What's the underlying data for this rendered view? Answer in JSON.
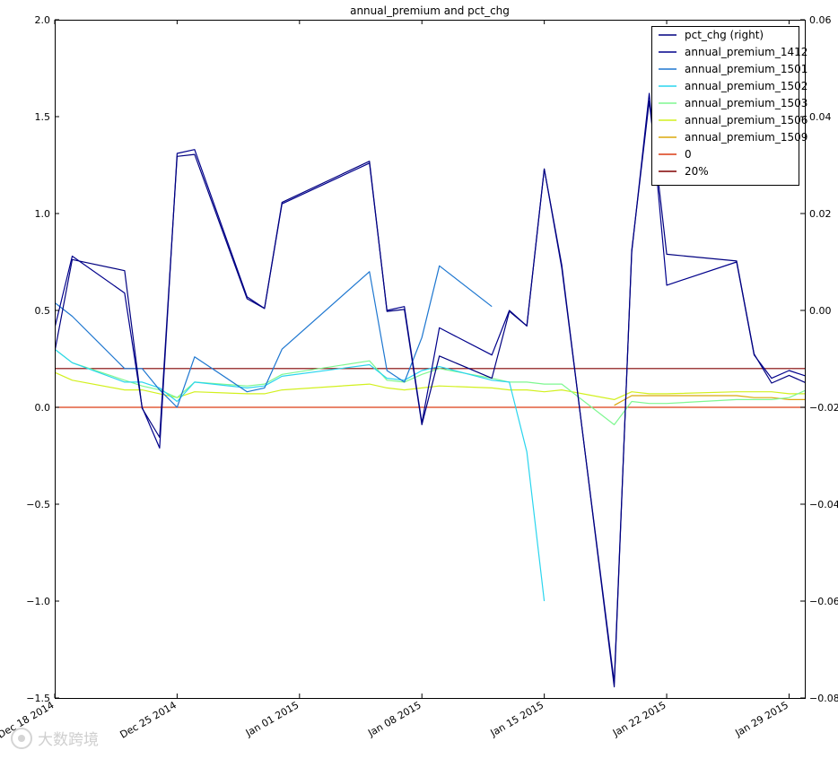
{
  "chart_data": {
    "type": "line",
    "title": "annual_premium and pct_chg",
    "xlabel": "",
    "ylabel": "",
    "x_tick_labels": [
      "Dec 18 2014",
      "Dec 25 2014",
      "Jan 01 2015",
      "Jan 08 2015",
      "Jan 15 2015",
      "Jan 22 2015",
      "Jan 29 2015"
    ],
    "x_tick_days": [
      0,
      7,
      14,
      21,
      28,
      35,
      42
    ],
    "xlim": [
      0,
      42.9
    ],
    "left_axis": {
      "ylim": [
        -1.5,
        2.0
      ],
      "ticks": [
        2.0,
        1.5,
        1.0,
        0.5,
        0.0,
        -0.5,
        -1.0,
        -1.5
      ],
      "tick_labels": [
        "2.0",
        "1.5",
        "1.0",
        "0.5",
        "0.0",
        "−0.5",
        "−1.0",
        "−1.5"
      ]
    },
    "right_axis": {
      "ylim": [
        -0.08,
        0.06
      ],
      "ticks": [
        0.06,
        0.04,
        0.02,
        0.0,
        -0.02,
        -0.04,
        -0.06,
        -0.08
      ],
      "tick_labels": [
        "0.06",
        "0.04",
        "0.02",
        "0.00",
        "−0.02",
        "−0.04",
        "−0.06",
        "−0.08"
      ]
    },
    "x": [
      0,
      1,
      4,
      5,
      6,
      7,
      8,
      11,
      12,
      13,
      18,
      19,
      20,
      21,
      22,
      25,
      26,
      27,
      28,
      29,
      32,
      33,
      34,
      35,
      39,
      40,
      41,
      42,
      43
    ],
    "series": [
      {
        "name": "pct_chg (right)",
        "axis": "right",
        "color": "#000080",
        "values": [
          -0.0085,
          0.0105,
          0.0082,
          -0.0202,
          -0.0262,
          0.0318,
          0.0322,
          0.0024,
          0.0004,
          0.0223,
          0.0308,
          -0.0002,
          0.0002,
          -0.0236,
          -0.0094,
          -0.014,
          -0.0002,
          -0.0032,
          0.0292,
          0.0094,
          -0.0777,
          0.0124,
          0.0432,
          0.0116,
          0.0102,
          -0.009,
          -0.015,
          -0.0134,
          -0.015
        ]
      },
      {
        "name": "annual_premium_1412",
        "axis": "left",
        "color": "#00008b",
        "values": [
          0.41,
          0.78,
          0.59,
          0.0,
          -0.21,
          1.31,
          1.33,
          0.57,
          0.51,
          1.05,
          1.26,
          0.5,
          0.52,
          -0.08,
          0.41,
          0.27,
          0.5,
          0.42,
          1.23,
          0.72,
          -1.42,
          0.8,
          1.62,
          0.63,
          0.75,
          0.27,
          0.15,
          0.19,
          0.16
        ]
      },
      {
        "name": "annual_premium_1501",
        "axis": "left",
        "color": "#1e77d0",
        "values": [
          0.54,
          0.47,
          0.2,
          0.2,
          0.09,
          0.0,
          0.26,
          0.08,
          0.1,
          0.3,
          0.7,
          0.19,
          0.13,
          0.36,
          0.73,
          0.52,
          null,
          null,
          null,
          null,
          null,
          null,
          null,
          null,
          null,
          null,
          null,
          null,
          null
        ]
      },
      {
        "name": "annual_premium_1502",
        "axis": "left",
        "color": "#2ad5ee",
        "values": [
          0.3,
          0.23,
          0.13,
          0.13,
          0.1,
          0.03,
          0.13,
          0.1,
          0.11,
          0.16,
          0.22,
          0.15,
          0.14,
          0.19,
          0.21,
          0.14,
          0.13,
          -0.23,
          -1.0,
          null,
          null,
          null,
          null,
          null,
          null,
          null,
          null,
          null,
          null
        ]
      },
      {
        "name": "annual_premium_1503",
        "axis": "left",
        "color": "#7ef790",
        "values": [
          0.3,
          0.23,
          0.14,
          0.11,
          0.09,
          0.05,
          0.13,
          0.11,
          0.12,
          0.17,
          0.24,
          0.14,
          0.13,
          0.17,
          0.2,
          0.15,
          0.13,
          0.13,
          0.12,
          0.12,
          -0.09,
          0.03,
          0.02,
          0.02,
          0.04,
          0.04,
          0.04,
          0.05,
          0.09
        ]
      },
      {
        "name": "annual_premium_1506",
        "axis": "left",
        "color": "#d2f01e",
        "values": [
          0.18,
          0.14,
          0.09,
          0.09,
          0.07,
          0.05,
          0.08,
          0.07,
          0.07,
          0.09,
          0.12,
          0.1,
          0.09,
          0.1,
          0.11,
          0.1,
          0.09,
          0.09,
          0.08,
          0.09,
          0.04,
          0.08,
          0.07,
          0.07,
          0.08,
          0.08,
          0.08,
          0.07,
          0.07
        ]
      },
      {
        "name": "annual_premium_1509",
        "axis": "left",
        "color": "#dba80d",
        "values": [
          null,
          null,
          null,
          null,
          null,
          null,
          null,
          null,
          null,
          null,
          null,
          null,
          null,
          null,
          null,
          null,
          null,
          null,
          null,
          null,
          0.01,
          0.06,
          0.06,
          0.06,
          0.06,
          0.05,
          0.05,
          0.04,
          0.04
        ]
      }
    ],
    "hlines": [
      {
        "name": "0",
        "axis": "left",
        "value": 0.0,
        "color": "#dc3c14"
      },
      {
        "name": "20%",
        "axis": "left",
        "value": 0.2,
        "color": "#800000"
      }
    ],
    "legend": {
      "placement": "top-right",
      "entries": [
        "pct_chg (right)",
        "annual_premium_1412",
        "annual_premium_1501",
        "annual_premium_1502",
        "annual_premium_1503",
        "annual_premium_1506",
        "annual_premium_1509",
        "0",
        "20%"
      ]
    }
  },
  "watermark": {
    "text": "大数跨境"
  }
}
